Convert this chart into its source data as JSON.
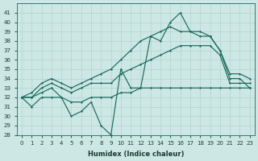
{
  "xlabel": "Humidex (Indice chaleur)",
  "background_color": "#cde8e4",
  "grid_color": "#b8d8d4",
  "line_color": "#1a6b5a",
  "ylim": [
    28,
    42
  ],
  "yticks": [
    28,
    29,
    30,
    31,
    32,
    33,
    34,
    35,
    36,
    37,
    38,
    39,
    40,
    41
  ],
  "xticks": [
    0,
    1,
    2,
    3,
    4,
    5,
    6,
    7,
    8,
    9,
    10,
    11,
    12,
    13,
    14,
    15,
    16,
    17,
    18,
    19,
    20,
    21,
    22,
    23
  ],
  "series": {
    "jagged": [
      32,
      31,
      32,
      32,
      32,
      30,
      30.5,
      31.5,
      29,
      28,
      35,
      33,
      33,
      38.5,
      38,
      40,
      41,
      39,
      39,
      38.5,
      37,
      34,
      34,
      33
    ],
    "flat_low": [
      32,
      32,
      32.5,
      33,
      32,
      31.5,
      31.5,
      32,
      32,
      32,
      32.5,
      32.5,
      33,
      33,
      33,
      33,
      33,
      33,
      33,
      33,
      33,
      33,
      33,
      33
    ],
    "smooth_mid": [
      32,
      32,
      33,
      33.5,
      33,
      32.5,
      33,
      33.5,
      33.5,
      33.5,
      34.5,
      35,
      35.5,
      36,
      36.5,
      37,
      37.5,
      37.5,
      37.5,
      37.5,
      36.5,
      33.5,
      33.5,
      33.5
    ],
    "smooth_high": [
      32,
      32.5,
      33.5,
      34,
      33.5,
      33,
      33.5,
      34,
      34.5,
      35,
      36,
      37,
      38,
      38.5,
      39,
      39.5,
      39,
      39,
      38.5,
      38.5,
      37,
      34.5,
      34.5,
      34
    ]
  }
}
